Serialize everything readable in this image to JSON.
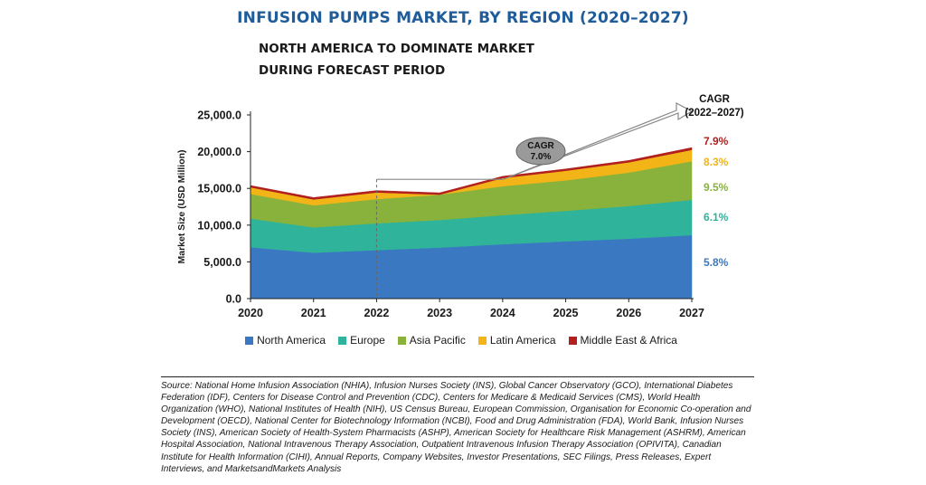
{
  "chart_data": {
    "type": "area",
    "stacked": true,
    "title": "INFUSION PUMPS MARKET, BY REGION (2020–2027)",
    "subtitle": [
      "NORTH AMERICA TO DOMINATE MARKET",
      "DURING FORECAST PERIOD"
    ],
    "ylabel": "Market Size (USD Million)",
    "xlabel": "",
    "x": [
      "2020",
      "2021",
      "2022",
      "2023",
      "2024",
      "2025",
      "2026",
      "2027"
    ],
    "ylim": [
      0,
      25000
    ],
    "yticks": [
      "0.0",
      "5,000.0",
      "10,000.0",
      "15,000.0",
      "20,000.0",
      "25,000.0"
    ],
    "grid": false,
    "legend_position": "bottom",
    "series": [
      {
        "name": "North America",
        "color": "#3a78c2",
        "cagr": "5.8%",
        "values": [
          7000,
          6250,
          6600,
          6950,
          7400,
          7800,
          8150,
          8650
        ]
      },
      {
        "name": "Europe",
        "color": "#2fb39a",
        "cagr": "6.1%",
        "values": [
          3900,
          3450,
          3650,
          3750,
          3950,
          4150,
          4450,
          4800
        ]
      },
      {
        "name": "Asia Pacific",
        "color": "#88b23c",
        "cagr": "9.5%",
        "values": [
          3350,
          3000,
          3300,
          3450,
          3950,
          4150,
          4550,
          5250
        ]
      },
      {
        "name": "Latin America",
        "color": "#f2b416",
        "cagr": "8.3%",
        "values": [
          900,
          800,
          900,
          0,
          1100,
          1300,
          1400,
          1550
        ]
      },
      {
        "name": "Middle East & Africa",
        "color": "#b11f1f",
        "cagr": "7.9%",
        "values": [
          250,
          250,
          250,
          250,
          250,
          250,
          250,
          300
        ]
      }
    ],
    "cagr_header": [
      "CAGR",
      "(2022–2027)"
    ],
    "cagr_callout": [
      "CAGR",
      "7.0%"
    ]
  },
  "source": "Source: National Home Infusion Association (NHIA), Infusion Nurses Society (INS), Global Cancer Observatory (GCO), International Diabetes Federation (IDF), Centers for Disease Control and Prevention (CDC), Centers for Medicare & Medicaid Services (CMS), World Health Organization (WHO), National Institutes of Health (NIH), US Census Bureau, European Commission, Organisation for Economic Co-operation and Development (OECD), National Center for Biotechnology Information (NCBI), Food and Drug Administration (FDA), World Bank, Infusion Nurses Society (INS), American Society of Health-System Pharmacists (ASHP), American Society for Healthcare Risk Management (ASHRM), American Hospital Association, National Intravenous Therapy Association, Outpatient Intravenous Infusion Therapy Association (OPIVITA), Canadian Institute for Health Information (CIHI), Annual Reports, Company Websites, Investor Presentations, SEC Filings, Press Releases, Expert Interviews, and MarketsandMarkets Analysis"
}
